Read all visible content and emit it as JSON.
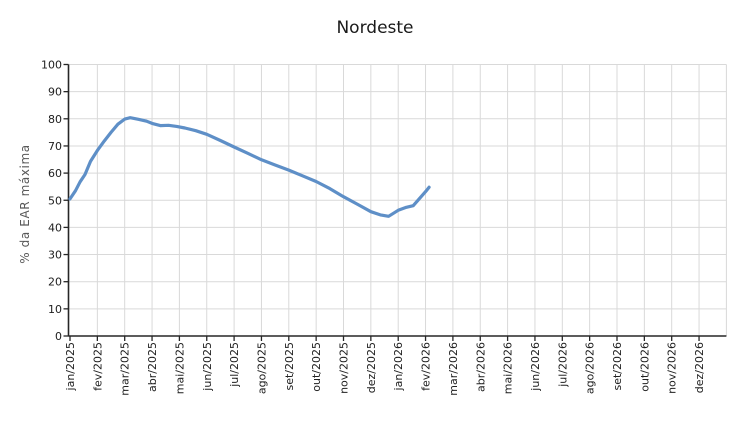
{
  "page": {
    "background": "#ffffff"
  },
  "colors": {
    "line": "#5e8fc7",
    "grid": "#d9d9d9",
    "axis": "#262626",
    "tick_label": "#202020",
    "title": "#1a1a1a",
    "axis_title": "#595959"
  },
  "chart_data": {
    "type": "line",
    "title": "Nordeste",
    "xlabel": "",
    "ylabel": "% da EAR máxima",
    "ylim": [
      0,
      100
    ],
    "y_ticks": [
      0,
      10,
      20,
      30,
      40,
      50,
      60,
      70,
      80,
      90,
      100
    ],
    "grid": true,
    "legend_position": "none",
    "x_categories": [
      "jan/2025",
      "fev/2025",
      "mar/2025",
      "abr/2025",
      "mai/2025",
      "jun/2025",
      "jul/2025",
      "ago/2025",
      "set/2025",
      "out/2025",
      "nov/2025",
      "dez/2025",
      "jan/2026",
      "fev/2026",
      "mar/2026",
      "abr/2026",
      "mai/2026",
      "jun/2026",
      "jul/2026",
      "ago/2026",
      "set/2026",
      "out/2026",
      "nov/2026",
      "dez/2026"
    ],
    "series": [
      {
        "name": "% da EAR máxima - Nordeste",
        "color": "#5e8fc7",
        "x_unit": "months after jan/2025 (fractional)",
        "monthly_values_at_ticks": [
          50.5,
          68.3,
          79.9,
          78.3,
          77.1,
          74.3,
          69.6,
          64.9,
          61.1,
          56.9,
          51.3,
          45.8,
          46.3,
          53.2,
          null,
          null,
          null,
          null,
          null,
          null,
          null,
          null,
          null,
          null
        ],
        "points": [
          [
            0,
            50.5
          ],
          [
            0.2,
            53.5
          ],
          [
            0.37,
            56.8
          ],
          [
            0.55,
            59.5
          ],
          [
            0.75,
            64.3
          ],
          [
            1,
            68.3
          ],
          [
            1.25,
            71.8
          ],
          [
            1.5,
            75.0
          ],
          [
            1.75,
            78.0
          ],
          [
            2,
            79.9
          ],
          [
            2.2,
            80.4
          ],
          [
            2.5,
            79.8
          ],
          [
            2.8,
            79.1
          ],
          [
            3,
            78.3
          ],
          [
            3.3,
            77.5
          ],
          [
            3.6,
            77.6
          ],
          [
            3.9,
            77.2
          ],
          [
            4.2,
            76.6
          ],
          [
            4.6,
            75.6
          ],
          [
            5,
            74.3
          ],
          [
            5.5,
            72.0
          ],
          [
            6,
            69.6
          ],
          [
            6.5,
            67.3
          ],
          [
            7,
            64.9
          ],
          [
            7.5,
            63.0
          ],
          [
            8,
            61.1
          ],
          [
            8.5,
            59.0
          ],
          [
            9,
            56.9
          ],
          [
            9.5,
            54.3
          ],
          [
            10,
            51.3
          ],
          [
            10.5,
            48.6
          ],
          [
            11,
            45.8
          ],
          [
            11.35,
            44.6
          ],
          [
            11.65,
            44.1
          ],
          [
            12,
            46.3
          ],
          [
            12.3,
            47.4
          ],
          [
            12.55,
            48.0
          ],
          [
            12.75,
            50.3
          ],
          [
            13,
            53.2
          ],
          [
            13.13,
            54.8
          ]
        ]
      }
    ]
  }
}
